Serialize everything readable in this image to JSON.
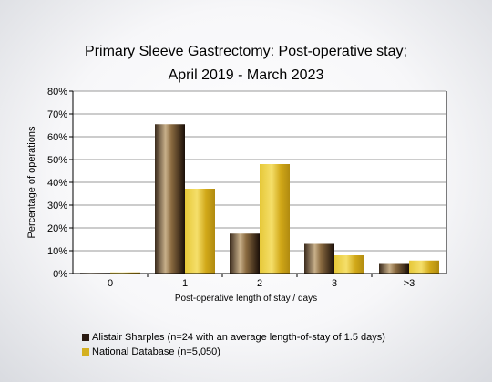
{
  "chart_data": {
    "type": "bar",
    "title_line1": "Primary Sleeve Gastrectomy: Post-operative stay;",
    "title_line2": "April 2019 - March 2023",
    "xlabel": "Post-operative length of stay / days",
    "ylabel": "Percentage of operations",
    "categories": [
      "0",
      "1",
      "2",
      "3",
      ">3"
    ],
    "yticks": [
      "0%",
      "10%",
      "20%",
      "30%",
      "40%",
      "50%",
      "60%",
      "70%",
      "80%"
    ],
    "ylim": [
      0,
      80
    ],
    "grid": true,
    "legend_position": "bottom-left",
    "series": [
      {
        "name": "Alistair Sharples (n=24 with an average length-of-stay of 1.5 days)",
        "values": [
          0.3,
          65.5,
          17.5,
          13,
          4.2
        ],
        "color": "#2a1a12"
      },
      {
        "name": "National Database (n=5,050)",
        "values": [
          0.5,
          37.2,
          48,
          8,
          5.7
        ],
        "color": "#d4b020"
      }
    ]
  }
}
